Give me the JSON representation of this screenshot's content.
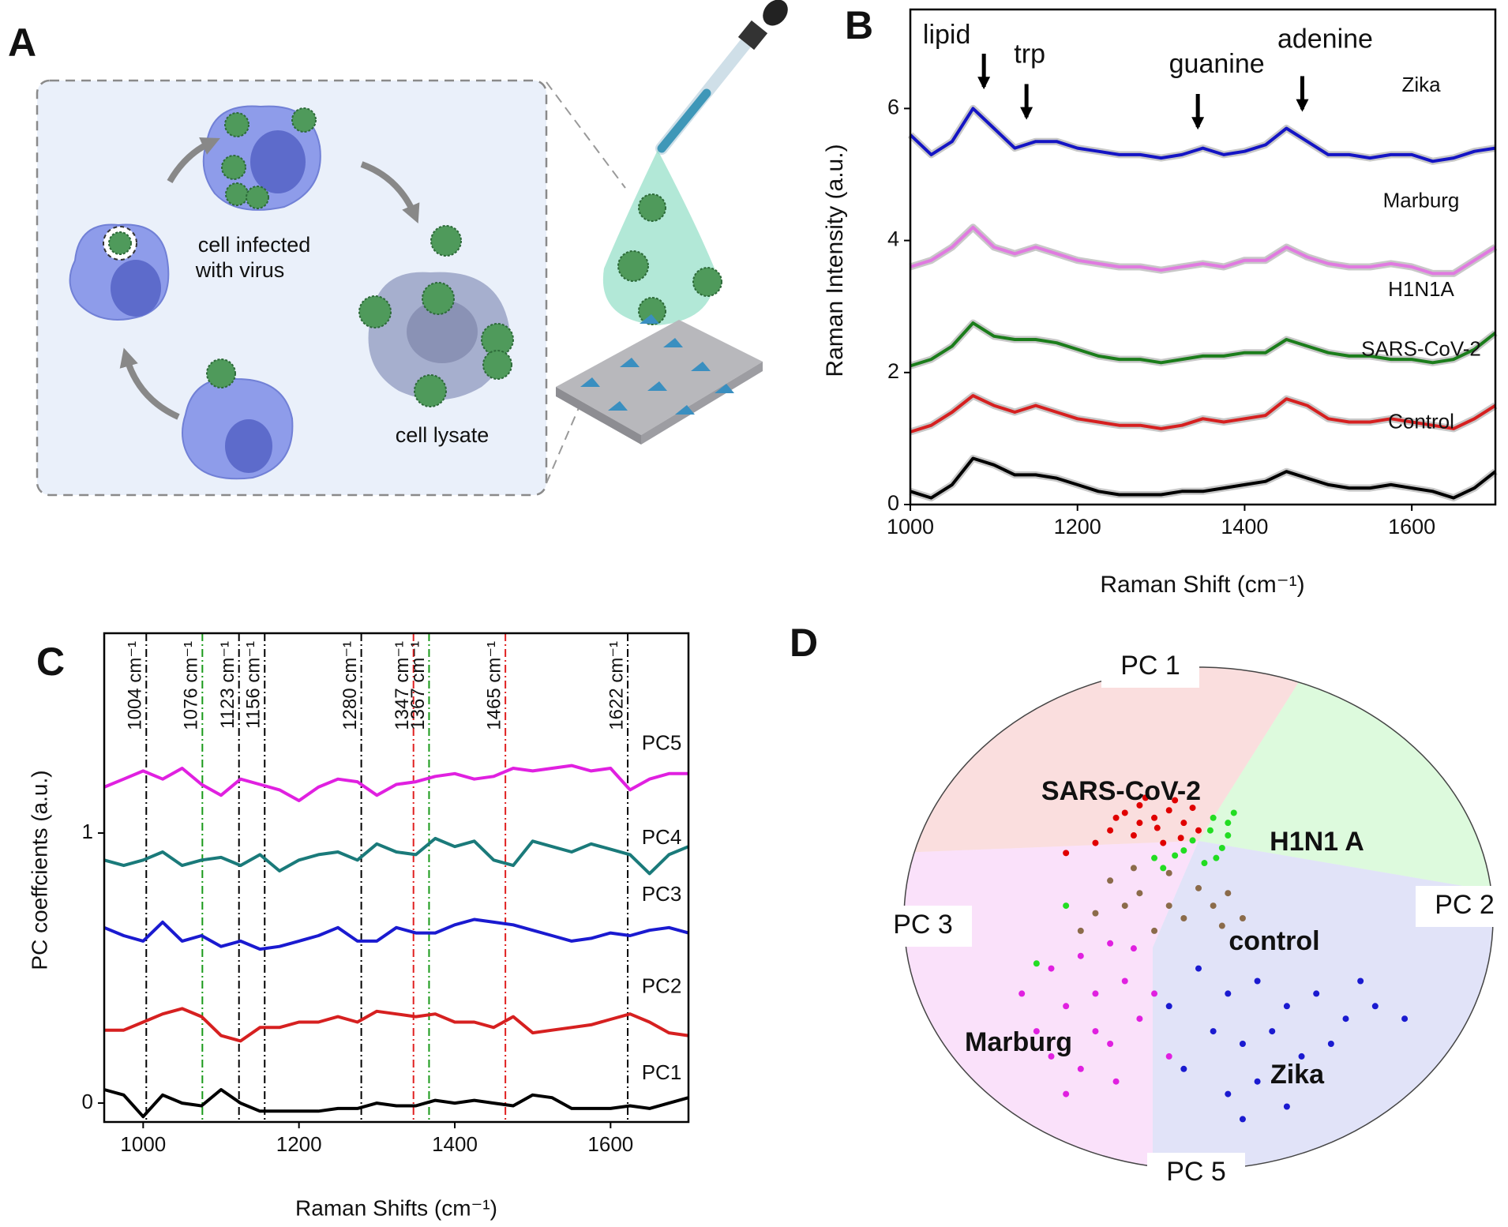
{
  "panel_a": {
    "label": "A",
    "infected_label": [
      "cell infected",
      "with virus"
    ],
    "lysate_label": "cell lysate"
  },
  "chart_data": [
    {
      "type": "line",
      "panel_label": "B",
      "y_label": "Raman Intensity (a.u.)",
      "x_label": "Raman Shift (cm⁻¹)",
      "xlim": [
        1000,
        1700
      ],
      "ylim": [
        0,
        7.5
      ],
      "xticks": [
        1000,
        1200,
        1400,
        1600
      ],
      "yticks": [
        0,
        2,
        4,
        6
      ],
      "x": [
        1000,
        1025,
        1050,
        1075,
        1100,
        1125,
        1150,
        1175,
        1200,
        1225,
        1250,
        1275,
        1300,
        1325,
        1350,
        1375,
        1400,
        1425,
        1450,
        1475,
        1500,
        1525,
        1550,
        1575,
        1600,
        1625,
        1650,
        1675,
        1700
      ],
      "series": [
        {
          "name": "Zika",
          "color": "#1414c4",
          "values": [
            5.6,
            5.3,
            5.5,
            6.0,
            5.7,
            5.4,
            5.5,
            5.5,
            5.4,
            5.35,
            5.3,
            5.3,
            5.25,
            5.3,
            5.4,
            5.3,
            5.35,
            5.45,
            5.7,
            5.5,
            5.3,
            5.3,
            5.25,
            5.3,
            5.3,
            5.2,
            5.25,
            5.35,
            5.4
          ]
        },
        {
          "name": "Marburg",
          "color": "#e07ae0",
          "values": [
            3.6,
            3.7,
            3.9,
            4.2,
            3.9,
            3.8,
            3.9,
            3.8,
            3.7,
            3.65,
            3.6,
            3.6,
            3.55,
            3.6,
            3.65,
            3.6,
            3.7,
            3.7,
            3.9,
            3.75,
            3.65,
            3.6,
            3.6,
            3.65,
            3.6,
            3.5,
            3.5,
            3.7,
            3.9
          ]
        },
        {
          "name": "H1N1A",
          "color": "#1b7d1b",
          "values": [
            2.1,
            2.2,
            2.4,
            2.75,
            2.55,
            2.5,
            2.5,
            2.45,
            2.35,
            2.25,
            2.2,
            2.2,
            2.15,
            2.2,
            2.25,
            2.25,
            2.3,
            2.3,
            2.5,
            2.4,
            2.3,
            2.25,
            2.25,
            2.2,
            2.2,
            2.15,
            2.2,
            2.35,
            2.6
          ]
        },
        {
          "name": "SARS-CoV-2",
          "color": "#d62020",
          "values": [
            1.1,
            1.2,
            1.4,
            1.65,
            1.5,
            1.4,
            1.5,
            1.4,
            1.3,
            1.25,
            1.2,
            1.2,
            1.15,
            1.2,
            1.3,
            1.25,
            1.3,
            1.35,
            1.6,
            1.5,
            1.3,
            1.25,
            1.25,
            1.3,
            1.25,
            1.2,
            1.15,
            1.3,
            1.5
          ]
        },
        {
          "name": "Control",
          "color": "#000000",
          "values": [
            0.2,
            0.1,
            0.3,
            0.7,
            0.6,
            0.45,
            0.45,
            0.4,
            0.3,
            0.2,
            0.15,
            0.15,
            0.15,
            0.2,
            0.2,
            0.25,
            0.3,
            0.35,
            0.5,
            0.4,
            0.3,
            0.25,
            0.25,
            0.3,
            0.25,
            0.2,
            0.1,
            0.25,
            0.5
          ]
        }
      ],
      "annotations": [
        {
          "text": "lipid",
          "x": 1088,
          "y": 6.28
        },
        {
          "text": "trp",
          "x": 1139,
          "y": 5.82
        },
        {
          "text": "guanine",
          "x": 1344,
          "y": 5.67
        },
        {
          "text": "adenine",
          "x": 1469,
          "y": 5.94
        }
      ]
    },
    {
      "type": "line",
      "panel_label": "C",
      "y_label": "PC coeffcients (a.u.)",
      "x_label": "Raman Shifts (cm⁻¹)",
      "xlim": [
        950,
        1700
      ],
      "ylim": [
        -0.07,
        1.74
      ],
      "xticks": [
        1000,
        1200,
        1400,
        1600
      ],
      "yticks": [
        0,
        1
      ],
      "x": [
        950,
        975,
        1000,
        1025,
        1050,
        1075,
        1100,
        1125,
        1150,
        1175,
        1200,
        1225,
        1250,
        1275,
        1300,
        1325,
        1350,
        1375,
        1400,
        1425,
        1450,
        1475,
        1500,
        1525,
        1550,
        1575,
        1600,
        1625,
        1650,
        1675,
        1700
      ],
      "vlines": [
        {
          "x": 1004,
          "label": "1004 cm⁻¹",
          "color": "#000000"
        },
        {
          "x": 1076,
          "label": "1076 cm⁻¹",
          "color": "#1a9a1a"
        },
        {
          "x": 1123,
          "label": "1123 cm⁻¹",
          "color": "#000000"
        },
        {
          "x": 1156,
          "label": "1156 cm⁻¹",
          "color": "#000000"
        },
        {
          "x": 1280,
          "label": "1280 cm⁻¹",
          "color": "#000000"
        },
        {
          "x": 1347,
          "label": "1347 cm⁻¹",
          "color": "#e02020"
        },
        {
          "x": 1367,
          "label": "1367 cm⁻¹",
          "color": "#1a9a1a"
        },
        {
          "x": 1465,
          "label": "1465 cm⁻¹",
          "color": "#e02020"
        },
        {
          "x": 1622,
          "label": "1622 cm⁻¹",
          "color": "#000000"
        }
      ],
      "series": [
        {
          "name": "PC5",
          "color": "#e020e0",
          "values": [
            1.17,
            1.2,
            1.23,
            1.2,
            1.24,
            1.18,
            1.14,
            1.2,
            1.18,
            1.16,
            1.12,
            1.17,
            1.2,
            1.19,
            1.14,
            1.18,
            1.19,
            1.21,
            1.22,
            1.2,
            1.21,
            1.24,
            1.23,
            1.24,
            1.25,
            1.23,
            1.24,
            1.16,
            1.2,
            1.22,
            1.22
          ]
        },
        {
          "name": "PC4",
          "color": "#1a7a7a",
          "values": [
            0.9,
            0.88,
            0.9,
            0.93,
            0.88,
            0.9,
            0.91,
            0.88,
            0.92,
            0.86,
            0.9,
            0.92,
            0.93,
            0.9,
            0.96,
            0.93,
            0.92,
            0.98,
            0.95,
            0.97,
            0.9,
            0.88,
            0.97,
            0.95,
            0.93,
            0.96,
            0.94,
            0.92,
            0.85,
            0.92,
            0.95
          ]
        },
        {
          "name": "PC3",
          "color": "#1a1ad0",
          "values": [
            0.65,
            0.62,
            0.6,
            0.67,
            0.6,
            0.62,
            0.58,
            0.6,
            0.57,
            0.58,
            0.6,
            0.62,
            0.65,
            0.6,
            0.6,
            0.65,
            0.63,
            0.63,
            0.66,
            0.68,
            0.67,
            0.66,
            0.64,
            0.62,
            0.6,
            0.61,
            0.63,
            0.62,
            0.64,
            0.65,
            0.63
          ]
        },
        {
          "name": "PC2",
          "color": "#d62020",
          "values": [
            0.27,
            0.27,
            0.3,
            0.33,
            0.35,
            0.32,
            0.25,
            0.23,
            0.28,
            0.28,
            0.3,
            0.3,
            0.32,
            0.3,
            0.34,
            0.33,
            0.32,
            0.33,
            0.3,
            0.3,
            0.28,
            0.32,
            0.26,
            0.27,
            0.28,
            0.29,
            0.31,
            0.33,
            0.3,
            0.26,
            0.25
          ]
        },
        {
          "name": "PC1",
          "color": "#000000",
          "values": [
            0.05,
            0.03,
            -0.05,
            0.03,
            0.0,
            -0.01,
            0.05,
            0.0,
            -0.03,
            -0.03,
            -0.03,
            -0.03,
            -0.02,
            -0.02,
            0.0,
            -0.01,
            -0.01,
            0.01,
            0.0,
            0.01,
            0.0,
            -0.01,
            0.03,
            0.02,
            -0.02,
            -0.02,
            -0.02,
            -0.01,
            -0.02,
            0.0,
            0.02
          ]
        }
      ]
    },
    {
      "type": "scatter",
      "panel_label": "D",
      "axis_labels": [
        "PC 1",
        "PC 2",
        "PC 3",
        "PC 5"
      ],
      "xlim": [
        -1,
        1
      ],
      "ylim": [
        -1,
        1
      ],
      "series": [
        {
          "name": "SARS-CoV-2",
          "color": "#e00000",
          "x": [
            -0.25,
            -0.2,
            -0.15,
            -0.1,
            -0.05,
            -0.3,
            -0.22,
            -0.12,
            -0.08,
            -0.18,
            -0.35,
            -0.02,
            -0.28,
            -0.14,
            0.0,
            -0.45,
            -0.2,
            -0.06
          ],
          "values": [
            0.42,
            0.45,
            0.4,
            0.43,
            0.38,
            0.35,
            0.33,
            0.3,
            0.47,
            0.48,
            0.3,
            0.44,
            0.4,
            0.36,
            0.35,
            0.26,
            0.38,
            0.32
          ]
        },
        {
          "name": "H1N1 A",
          "color": "#22dd22",
          "x": [
            0.05,
            0.1,
            -0.05,
            0.02,
            0.08,
            -0.12,
            0.04,
            0.12,
            -0.02,
            -0.45,
            0.06,
            -0.08,
            -0.55,
            0.1,
            -0.15
          ],
          "values": [
            0.4,
            0.33,
            0.27,
            0.22,
            0.28,
            0.2,
            0.35,
            0.42,
            0.31,
            0.05,
            0.24,
            0.25,
            -0.18,
            0.38,
            0.24
          ]
        },
        {
          "name": "control",
          "color": "#8b6b4a",
          "x": [
            -0.3,
            -0.2,
            -0.1,
            -0.05,
            0.05,
            0.1,
            -0.25,
            -0.15,
            0.0,
            -0.35,
            0.15,
            -0.1,
            0.08,
            -0.22,
            -0.4
          ],
          "values": [
            0.15,
            0.1,
            0.05,
            0.0,
            0.05,
            0.1,
            0.05,
            -0.05,
            0.12,
            0.02,
            0.0,
            0.18,
            -0.03,
            0.2,
            -0.05
          ]
        },
        {
          "name": "Marburg",
          "color": "#e020e0",
          "x": [
            -0.5,
            -0.4,
            -0.3,
            -0.45,
            -0.35,
            -0.25,
            -0.55,
            -0.2,
            -0.3,
            -0.4,
            -0.15,
            -0.5,
            -0.28,
            -0.6,
            -0.22,
            -0.35,
            -0.1,
            -0.45
          ],
          "values": [
            -0.2,
            -0.15,
            -0.1,
            -0.35,
            -0.3,
            -0.25,
            -0.45,
            -0.4,
            -0.5,
            -0.6,
            -0.3,
            -0.55,
            -0.65,
            -0.3,
            -0.12,
            -0.45,
            -0.55,
            -0.7
          ]
        },
        {
          "name": "Zika",
          "color": "#1a1ad0",
          "x": [
            0.0,
            0.1,
            0.2,
            0.3,
            0.4,
            0.5,
            0.05,
            0.15,
            0.25,
            0.35,
            0.45,
            0.6,
            -0.05,
            0.1,
            0.2,
            0.3,
            -0.1,
            0.55,
            0.7,
            0.15
          ],
          "values": [
            -0.2,
            -0.3,
            -0.25,
            -0.35,
            -0.3,
            -0.4,
            -0.45,
            -0.5,
            -0.45,
            -0.55,
            -0.5,
            -0.35,
            -0.6,
            -0.7,
            -0.65,
            -0.75,
            -0.35,
            -0.25,
            -0.4,
            -0.8
          ]
        }
      ]
    }
  ]
}
